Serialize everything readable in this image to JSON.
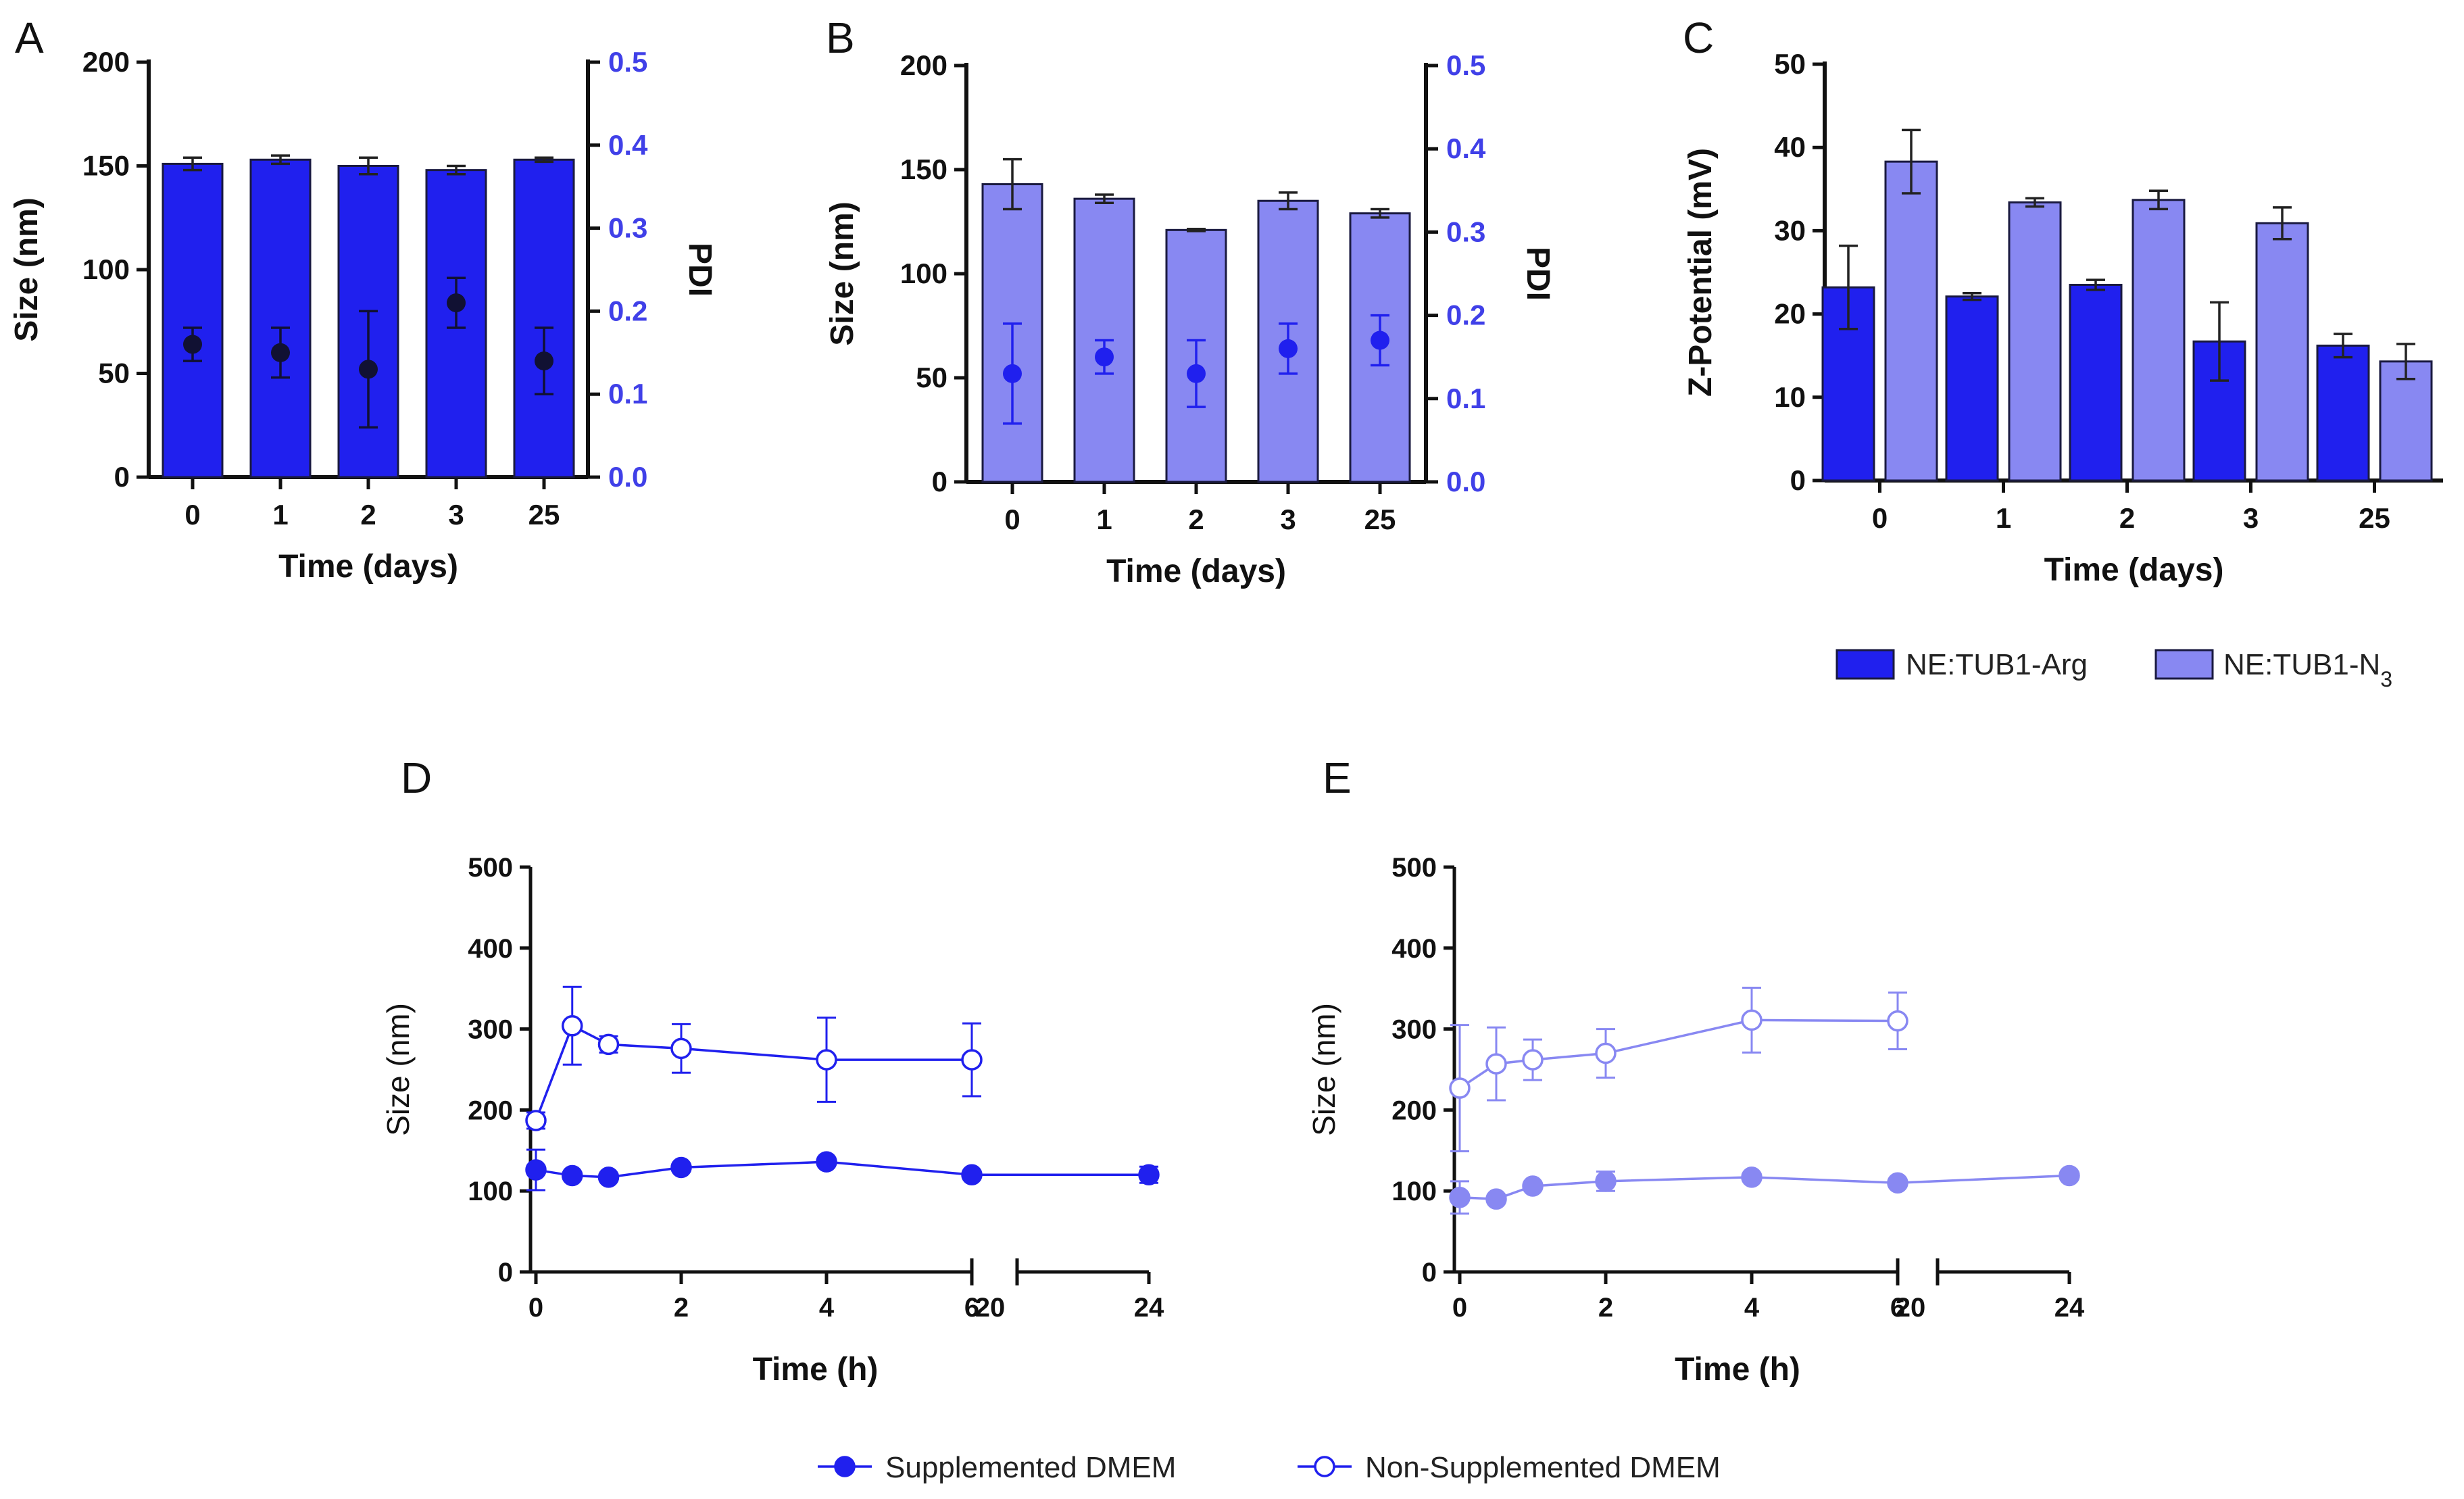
{
  "figure": {
    "panel_labels": [
      "A",
      "B",
      "C",
      "D",
      "E"
    ],
    "colors": {
      "arg": "#2020ee",
      "n3": "#8888f2",
      "pdi_axis": "#4040e8",
      "dark_marker": "#111133"
    },
    "legend_top": {
      "items": [
        {
          "label": "NE:TUB1-Arg",
          "color": "#2020ee"
        },
        {
          "label": "NE:TUB1-N",
          "sub": "3",
          "color": "#8888f2"
        }
      ]
    },
    "legend_bottom": {
      "items": [
        {
          "label": "Supplemented DMEM",
          "marker": "filled"
        },
        {
          "label": "Non-Supplemented DMEM",
          "marker": "open"
        }
      ]
    }
  },
  "chart_data": [
    {
      "panel": "A",
      "type": "bar",
      "title": "",
      "categories": [
        "0",
        "1",
        "2",
        "3",
        "25"
      ],
      "xlabel": "Time (days)",
      "ylabel": "Size (nm)",
      "y2label": "PDI",
      "ylim": [
        0,
        200
      ],
      "yticks": [
        "0",
        "50",
        "100",
        "150",
        "200"
      ],
      "y2lim": [
        0,
        0.5
      ],
      "y2ticks": [
        "0.0",
        "0.1",
        "0.2",
        "0.3",
        "0.4",
        "0.5"
      ],
      "series": [
        {
          "name": "Size",
          "values": [
            151,
            153,
            150,
            148,
            153
          ],
          "errors": [
            3,
            2,
            4,
            2,
            1
          ],
          "color": "#2020ee"
        },
        {
          "name": "PDI",
          "axis": "y2",
          "values": [
            0.16,
            0.15,
            0.13,
            0.21,
            0.14
          ],
          "errors": [
            0.02,
            0.03,
            0.07,
            0.03,
            0.04
          ],
          "color": "#111133"
        }
      ]
    },
    {
      "panel": "B",
      "type": "bar",
      "title": "",
      "categories": [
        "0",
        "1",
        "2",
        "3",
        "25"
      ],
      "xlabel": "Time (days)",
      "ylabel": "Size (nm)",
      "y2label": "PDI",
      "ylim": [
        0,
        200
      ],
      "yticks": [
        "0",
        "50",
        "100",
        "150",
        "200"
      ],
      "y2lim": [
        0,
        0.5
      ],
      "y2ticks": [
        "0.0",
        "0.1",
        "0.2",
        "0.3",
        "0.4",
        "0.5"
      ],
      "series": [
        {
          "name": "Size",
          "values": [
            143,
            136,
            121,
            135,
            129
          ],
          "errors": [
            12,
            2,
            0.5,
            4,
            2
          ],
          "color": "#8888f2"
        },
        {
          "name": "PDI",
          "axis": "y2",
          "values": [
            0.13,
            0.15,
            0.13,
            0.16,
            0.17
          ],
          "errors": [
            0.06,
            0.02,
            0.04,
            0.03,
            0.03
          ],
          "color": "#2020ee"
        }
      ]
    },
    {
      "panel": "C",
      "type": "bar",
      "title": "",
      "categories": [
        "0",
        "1",
        "2",
        "3",
        "25"
      ],
      "xlabel": "Time (days)",
      "ylabel": "Z-Potential (mV)",
      "ylim": [
        0,
        50
      ],
      "yticks": [
        "0",
        "10",
        "20",
        "30",
        "40",
        "50"
      ],
      "series": [
        {
          "name": "NE:TUB1-Arg",
          "values": [
            23.2,
            22.1,
            23.5,
            16.7,
            16.2
          ],
          "errors": [
            5,
            0.4,
            0.6,
            4.7,
            1.4
          ],
          "color": "#2020ee"
        },
        {
          "name": "NE:TUB1-N3",
          "values": [
            38.3,
            33.4,
            33.7,
            30.9,
            14.3
          ],
          "errors": [
            3.8,
            0.5,
            1.1,
            1.9,
            2.1
          ],
          "color": "#8888f2"
        }
      ]
    },
    {
      "panel": "D",
      "type": "line",
      "title": "",
      "xlabel": "Time (h)",
      "ylabel": "Size (nm)",
      "ylim": [
        0,
        500
      ],
      "yticks": [
        "0",
        "100",
        "200",
        "300",
        "400",
        "500"
      ],
      "xticks": [
        "0",
        "2",
        "4",
        "6",
        "20",
        "24"
      ],
      "series": [
        {
          "name": "Supplemented DMEM",
          "marker": "filled",
          "x": [
            0,
            0.5,
            1,
            2,
            4,
            6,
            24
          ],
          "values": [
            126,
            119,
            117,
            129,
            136,
            120,
            120
          ],
          "errors": [
            25,
            0,
            0,
            0,
            0,
            0,
            10
          ],
          "color": "#2020ee"
        },
        {
          "name": "Non-Supplemented DMEM",
          "marker": "open",
          "x": [
            0,
            0.5,
            1,
            2,
            4,
            6
          ],
          "values": [
            187,
            304,
            281,
            276,
            262,
            262
          ],
          "errors": [
            10,
            48,
            10,
            30,
            52,
            45
          ],
          "color": "#2020ee"
        }
      ]
    },
    {
      "panel": "E",
      "type": "line",
      "title": "",
      "xlabel": "Time (h)",
      "ylabel": "Size (nm)",
      "ylim": [
        0,
        500
      ],
      "yticks": [
        "0",
        "100",
        "200",
        "300",
        "400",
        "500"
      ],
      "xticks": [
        "0",
        "2",
        "4",
        "6",
        "20",
        "24"
      ],
      "series": [
        {
          "name": "Supplemented DMEM",
          "marker": "filled",
          "x": [
            0,
            0.5,
            1,
            2,
            4,
            6,
            24
          ],
          "values": [
            92,
            90,
            106,
            112,
            117,
            110,
            119
          ],
          "errors": [
            20,
            0,
            0,
            12,
            0,
            0,
            0
          ],
          "color": "#8888f2"
        },
        {
          "name": "Non-Supplemented DMEM",
          "marker": "open",
          "x": [
            0,
            0.5,
            1,
            2,
            4,
            6
          ],
          "values": [
            227,
            257,
            262,
            270,
            311,
            310
          ],
          "errors": [
            78,
            45,
            25,
            30,
            40,
            35
          ],
          "color": "#8888f2"
        }
      ]
    }
  ]
}
